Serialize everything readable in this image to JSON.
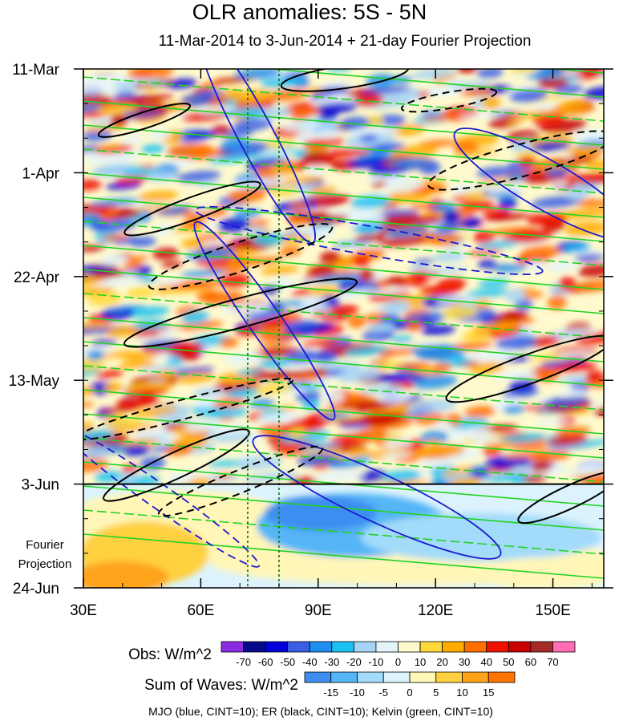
{
  "chart_data": {
    "type": "heatmap",
    "title": "OLR anomalies: 5S - 5N",
    "subtitle": "11-Mar-2014 to 3-Jun-2014 + 21-day Fourier Projection",
    "x_axis": {
      "range_deg": [
        30,
        163
      ],
      "ticks": [
        {
          "value": 30,
          "label": "30E"
        },
        {
          "value": 60,
          "label": "60E"
        },
        {
          "value": 90,
          "label": "90E"
        },
        {
          "value": 120,
          "label": "120E"
        },
        {
          "value": 150,
          "label": "150E"
        }
      ]
    },
    "y_axis": {
      "range_days": [
        0,
        105
      ],
      "ticks": [
        {
          "day": 0,
          "label": "11-Mar"
        },
        {
          "day": 21,
          "label": "1-Apr"
        },
        {
          "day": 42,
          "label": "22-Apr"
        },
        {
          "day": 63,
          "label": "13-May"
        },
        {
          "day": 84,
          "label": "3-Jun"
        },
        {
          "day": 105,
          "label": "24-Jun"
        }
      ],
      "observation_end_day": 84
    },
    "projection_label": [
      "Fourier",
      "Projection"
    ],
    "reference_lines_lon": [
      72,
      80
    ],
    "obs_colorbar": {
      "label": "Obs: W/m^2",
      "levels": [
        "-70",
        "-60",
        "-50",
        "-40",
        "-30",
        "-20",
        "-10",
        "0",
        "10",
        "20",
        "30",
        "40",
        "50",
        "60",
        "70"
      ],
      "colors": [
        "#8b2be2",
        "#08088c",
        "#0000d8",
        "#3a5fe6",
        "#1e8ff0",
        "#19c2f2",
        "#a6d4f6",
        "#e3f4fb",
        "#fffacd",
        "#ffd93a",
        "#ffab00",
        "#ff6f00",
        "#ee1100",
        "#c80000",
        "#a52a2a",
        "#ff6eb4"
      ]
    },
    "waves_colorbar": {
      "label": "Sum of Waves: W/m^2",
      "levels": [
        "-15",
        "-10",
        "-5",
        "0",
        "5",
        "10",
        "15"
      ],
      "colors": [
        "#3d8ef0",
        "#55b5f6",
        "#a3dbfa",
        "#dcf3fd",
        "#fff6b8",
        "#ffd040",
        "#ffa31a",
        "#ff7300"
      ]
    },
    "legend_text": "MJO (blue, CINT=10); ER (black, CINT=10); Kelvin (green, CINT=10)",
    "series_colors": {
      "mjo": "#1a1acc",
      "er": "#000000",
      "kelvin": "#22d322",
      "reference": "#117711"
    }
  }
}
